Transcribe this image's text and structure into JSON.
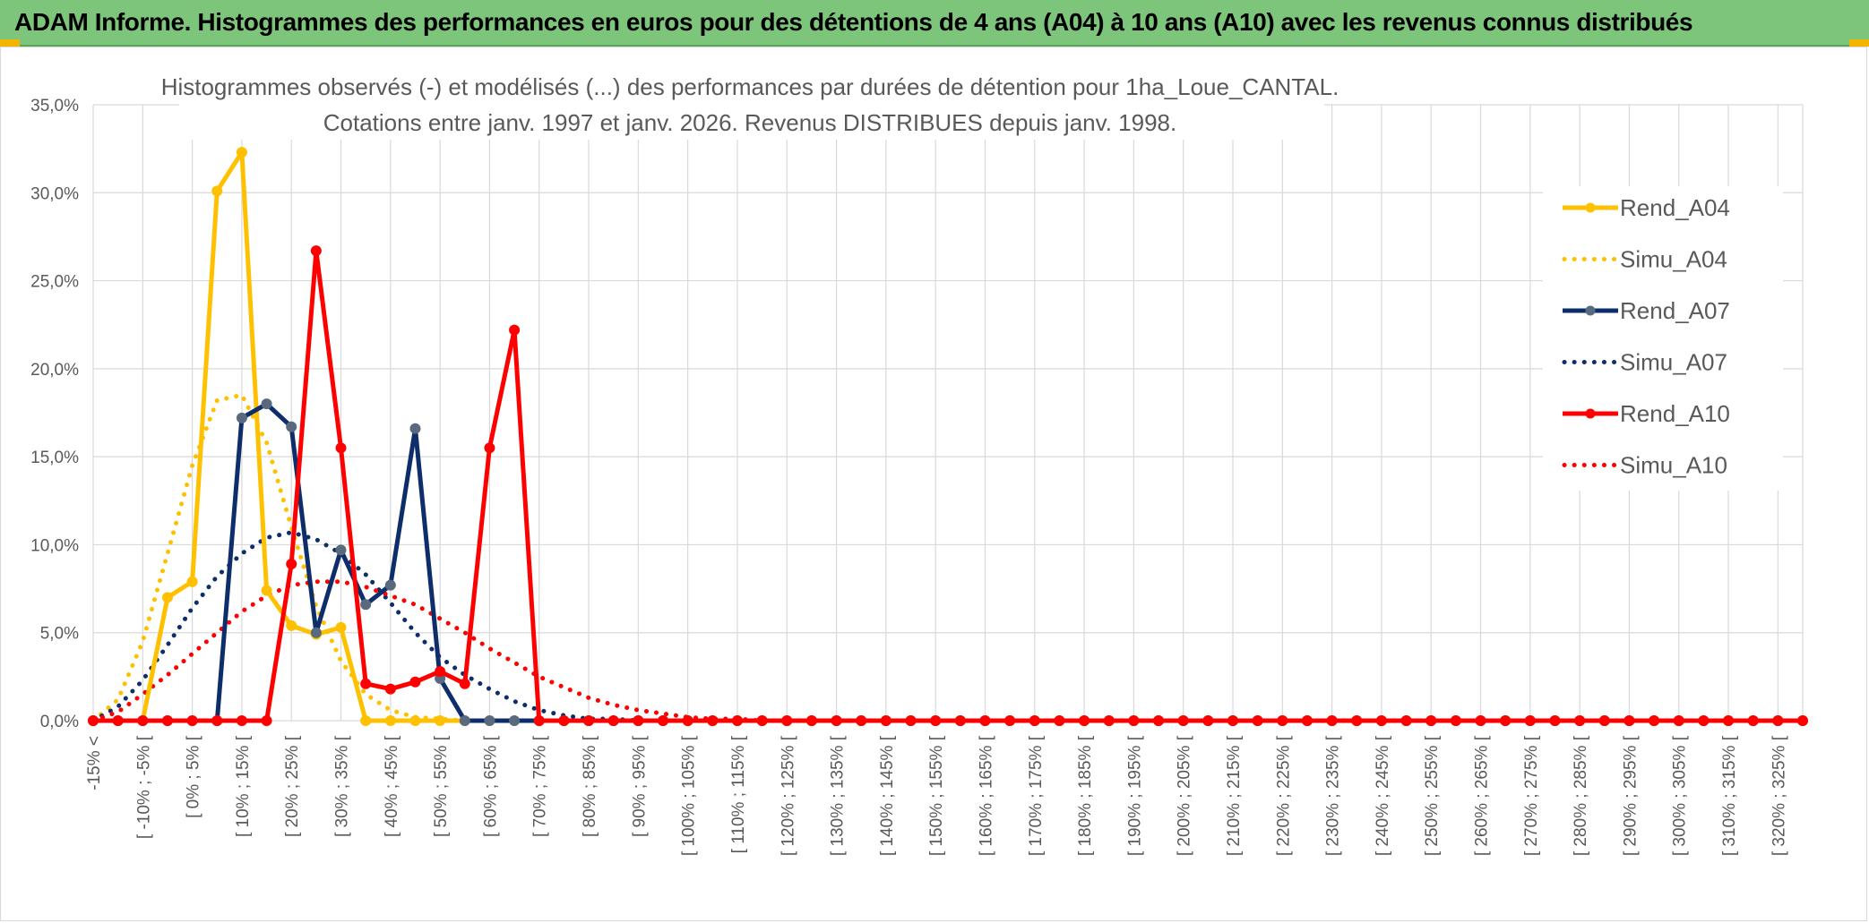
{
  "banner": {
    "title": "ADAM Informe. Histogrammes des performances en euros pour des détentions de 4 ans (A04) à 10 ans (A10) avec les revenus connus distribués"
  },
  "colors": {
    "banner": "#7dc57a",
    "A04": "#ffc000",
    "A07": "#0e2d6b",
    "A07_marker": "#5a6a7e",
    "A10": "#ff0000",
    "grid": "#d9d9d9",
    "text": "#595959"
  },
  "chart_data": {
    "type": "line",
    "title": "Histogrammes observés (-) et modélisés (...) des performances par durées de détention pour 1ha_Loue_CANTAL.",
    "subtitle": "Cotations entre janv. 1997 et janv. 2026. Revenus DISTRIBUES depuis janv. 1998.",
    "xlabel": "",
    "ylabel": "",
    "ylim": [
      0,
      35
    ],
    "y_ticks": [
      "0,0%",
      "5,0%",
      "10,0%",
      "15,0%",
      "20,0%",
      "25,0%",
      "30,0%",
      "35,0%"
    ],
    "grid": true,
    "legend_position": "right",
    "x_labels": [
      "-15% <",
      "[ -10% ; -5% [",
      "[ 0% ; 5% [",
      "[ 10% ; 15% [",
      "[ 20% ; 25% [",
      "[ 30% ; 35% [",
      "[ 40% ; 45% [",
      "[ 50% ; 55% [",
      "[ 60% ; 65% [",
      "[ 70% ; 75% [",
      "[ 80% ; 85% [",
      "[ 90% ; 95% [",
      "[ 100% ; 105% [",
      "[ 110% ; 115% [",
      "[ 120% ; 125% [",
      "[ 130% ; 135% [",
      "[ 140% ; 145% [",
      "[ 150% ; 155% [",
      "[ 160% ; 165% [",
      "[ 170% ; 175% [",
      "[ 180% ; 185% [",
      "[ 190% ; 195% [",
      "[ 200% ; 205% [",
      "[ 210% ; 215% [",
      "[ 220% ; 225% [",
      "[ 230% ; 235% [",
      "[ 240% ; 245% [",
      "[ 250% ; 255% [",
      "[ 260% ; 265% [",
      "[ 270% ; 275% [",
      "[ 280% ; 285% [",
      "[ 290% ; 295% [",
      "[ 300% ; 305% [",
      "[ 310% ; 315% [",
      "[ 320% ; 325% ["
    ],
    "series": [
      {
        "name": "Rend_A04",
        "style": "solid",
        "color": "#ffc000",
        "values": [
          0,
          0,
          0,
          7.0,
          7.9,
          30.1,
          32.3,
          7.4,
          5.4,
          4.9,
          5.3,
          0,
          0,
          0,
          0,
          0,
          0,
          0,
          0,
          0,
          0,
          0,
          0,
          0,
          0,
          0,
          0,
          0,
          0,
          0,
          0,
          0,
          0,
          0,
          0,
          0,
          0,
          0,
          0,
          0,
          0,
          0,
          0,
          0,
          0,
          0,
          0,
          0,
          0,
          0,
          0,
          0,
          0,
          0,
          0,
          0,
          0,
          0,
          0,
          0,
          0,
          0,
          0,
          0,
          0,
          0,
          0,
          0,
          0,
          0
        ]
      },
      {
        "name": "Simu_A04",
        "style": "dotted",
        "color": "#ffc000",
        "values": [
          0,
          1.2,
          4.5,
          9.5,
          14.5,
          18.2,
          18.5,
          15.8,
          11.0,
          6.5,
          3.4,
          1.5,
          0.6,
          0.2,
          0.1,
          0,
          0,
          0,
          0,
          0,
          0,
          0,
          0,
          0,
          0,
          0,
          0,
          0,
          0,
          0,
          0,
          0,
          0,
          0,
          0,
          0,
          0,
          0,
          0,
          0,
          0,
          0,
          0,
          0,
          0,
          0,
          0,
          0,
          0,
          0,
          0,
          0,
          0,
          0,
          0,
          0,
          0,
          0,
          0,
          0,
          0,
          0,
          0,
          0,
          0,
          0,
          0,
          0,
          0,
          0
        ]
      },
      {
        "name": "Rend_A07",
        "style": "solid",
        "color": "#0e2d6b",
        "values": [
          0,
          0,
          0,
          0,
          0,
          0,
          17.2,
          18.0,
          16.7,
          5.0,
          9.7,
          6.6,
          7.7,
          16.6,
          2.4,
          0,
          0,
          0,
          0,
          0,
          0,
          0,
          0,
          0,
          0,
          0,
          0,
          0,
          0,
          0,
          0,
          0,
          0,
          0,
          0,
          0,
          0,
          0,
          0,
          0,
          0,
          0,
          0,
          0,
          0,
          0,
          0,
          0,
          0,
          0,
          0,
          0,
          0,
          0,
          0,
          0,
          0,
          0,
          0,
          0,
          0,
          0,
          0,
          0,
          0,
          0,
          0,
          0,
          0,
          0
        ]
      },
      {
        "name": "Simu_A07",
        "style": "dotted",
        "color": "#0e2d6b",
        "values": [
          0,
          0.8,
          2.3,
          4.3,
          6.4,
          8.2,
          9.5,
          10.4,
          10.7,
          10.3,
          9.5,
          8.3,
          6.7,
          5.0,
          3.6,
          2.6,
          1.8,
          1.1,
          0.6,
          0.3,
          0.1,
          0.1,
          0,
          0,
          0,
          0,
          0,
          0,
          0,
          0,
          0,
          0,
          0,
          0,
          0,
          0,
          0,
          0,
          0,
          0,
          0,
          0,
          0,
          0,
          0,
          0,
          0,
          0,
          0,
          0,
          0,
          0,
          0,
          0,
          0,
          0,
          0,
          0,
          0,
          0,
          0,
          0,
          0,
          0,
          0,
          0,
          0,
          0,
          0,
          0
        ]
      },
      {
        "name": "Rend_A10",
        "style": "solid",
        "color": "#ff0000",
        "values": [
          0,
          0,
          0,
          0,
          0,
          0,
          0,
          0,
          8.9,
          26.7,
          15.5,
          2.1,
          1.8,
          2.2,
          2.8,
          2.1,
          15.5,
          22.2,
          0,
          0,
          0,
          0,
          0,
          0,
          0,
          0,
          0,
          0,
          0,
          0,
          0,
          0,
          0,
          0,
          0,
          0,
          0,
          0,
          0,
          0,
          0,
          0,
          0,
          0,
          0,
          0,
          0,
          0,
          0,
          0,
          0,
          0,
          0,
          0,
          0,
          0,
          0,
          0,
          0,
          0,
          0,
          0,
          0,
          0,
          0,
          0,
          0,
          0,
          0,
          0
        ]
      },
      {
        "name": "Simu_A10",
        "style": "dotted",
        "color": "#ff0000",
        "values": [
          0,
          0.5,
          1.5,
          2.6,
          3.8,
          5.0,
          6.2,
          7.1,
          7.7,
          7.9,
          7.9,
          7.6,
          7.1,
          6.6,
          5.8,
          5.0,
          4.1,
          3.3,
          2.5,
          1.9,
          1.3,
          0.9,
          0.6,
          0.4,
          0.2,
          0.1,
          0.1,
          0,
          0,
          0,
          0,
          0,
          0,
          0,
          0,
          0,
          0,
          0,
          0,
          0,
          0,
          0,
          0,
          0,
          0,
          0,
          0,
          0,
          0,
          0,
          0,
          0,
          0,
          0,
          0,
          0,
          0,
          0,
          0,
          0,
          0,
          0,
          0,
          0,
          0,
          0,
          0,
          0,
          0,
          0
        ]
      }
    ]
  }
}
